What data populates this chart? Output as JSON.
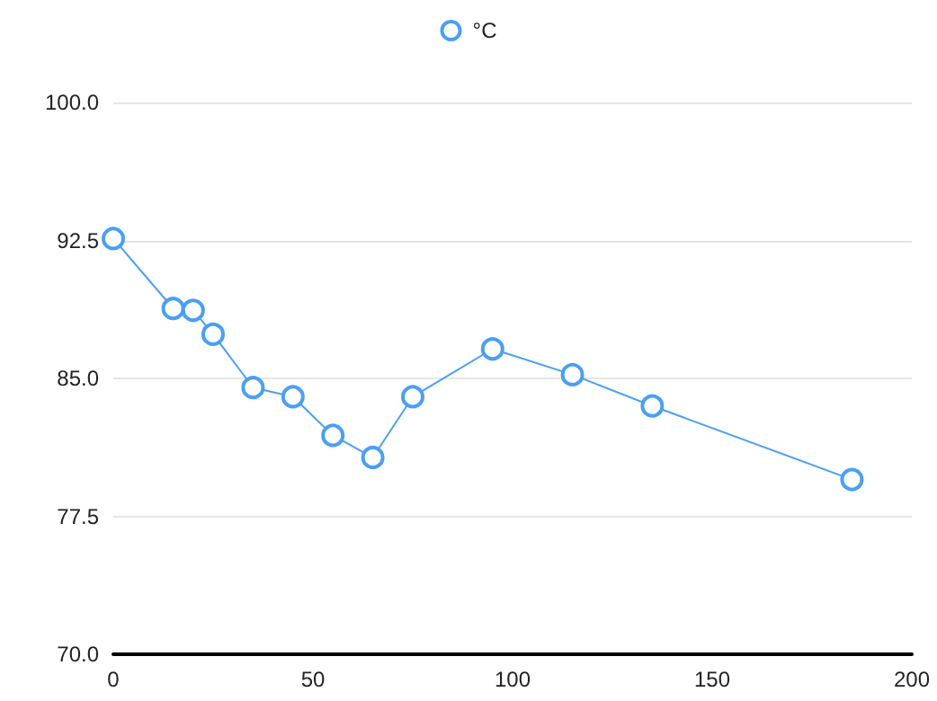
{
  "chart_data": {
    "type": "line",
    "x": [
      0,
      15,
      20,
      25,
      35,
      45,
      55,
      65,
      75,
      95,
      115,
      135,
      185
    ],
    "series": [
      {
        "name": "°C",
        "color": "#4a9ff5",
        "values": [
          92.6,
          88.8,
          88.7,
          87.4,
          84.5,
          84.0,
          81.9,
          80.7,
          84.0,
          86.6,
          85.2,
          83.5,
          79.5
        ]
      }
    ],
    "xlim": [
      0,
      200
    ],
    "xticks": [
      0,
      50,
      100,
      150,
      200
    ],
    "ylim": [
      70,
      100
    ],
    "yticks": [
      {
        "value": 70,
        "label": "70.0"
      },
      {
        "value": 77.5,
        "label": "77.5"
      },
      {
        "value": 85,
        "label": "85.0"
      },
      {
        "value": 92.5,
        "label": "92.5"
      },
      {
        "value": 100,
        "label": "100.0"
      }
    ],
    "grid": "y",
    "legend": "top",
    "marker": "circle",
    "line_style": "solid"
  }
}
